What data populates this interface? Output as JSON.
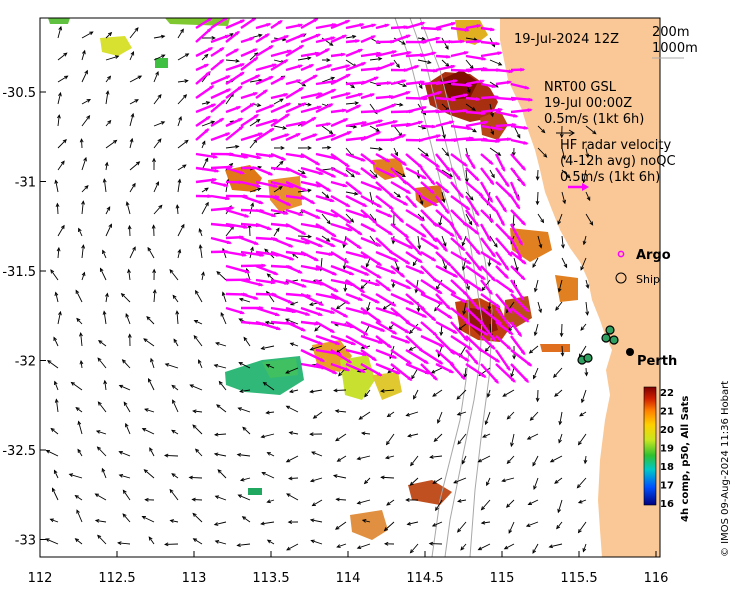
{
  "map": {
    "date_label": "19-Jul-2024 12Z",
    "depth_contours": [
      "200m",
      "1000m"
    ],
    "model_title": "NRT00 GSL",
    "model_time": "19-Jul 00:00Z",
    "model_scale": "0.5m/s (1kt 6h)",
    "radar_title": "HF radar velocity",
    "radar_avg": "(4-12h avg) noQC",
    "radar_scale": "0.5m/s (1kt 6h)",
    "argo_label": "Argo",
    "ship_label": "Ship",
    "place_label": "Perth",
    "credit": "© IMOS 09-Aug-2024 11:36 Hobart",
    "x_ticks": [
      "112",
      "112.5",
      "113",
      "113.5",
      "114",
      "114.5",
      "115",
      "115.5",
      "116"
    ],
    "y_ticks": [
      "-30.5",
      "-31",
      "-31.5",
      "-32",
      "-32.5",
      "-33"
    ],
    "colorbar_title": "4h comp, p50, All Sats",
    "colorbar_ticks": [
      "22",
      "21",
      "20",
      "19",
      "18",
      "17",
      "16"
    ],
    "colors": {
      "land": "#fac896",
      "radar_arrow": "#ff00ff",
      "argo": "#ff00ff",
      "contour": "#a8a8a8"
    }
  }
}
